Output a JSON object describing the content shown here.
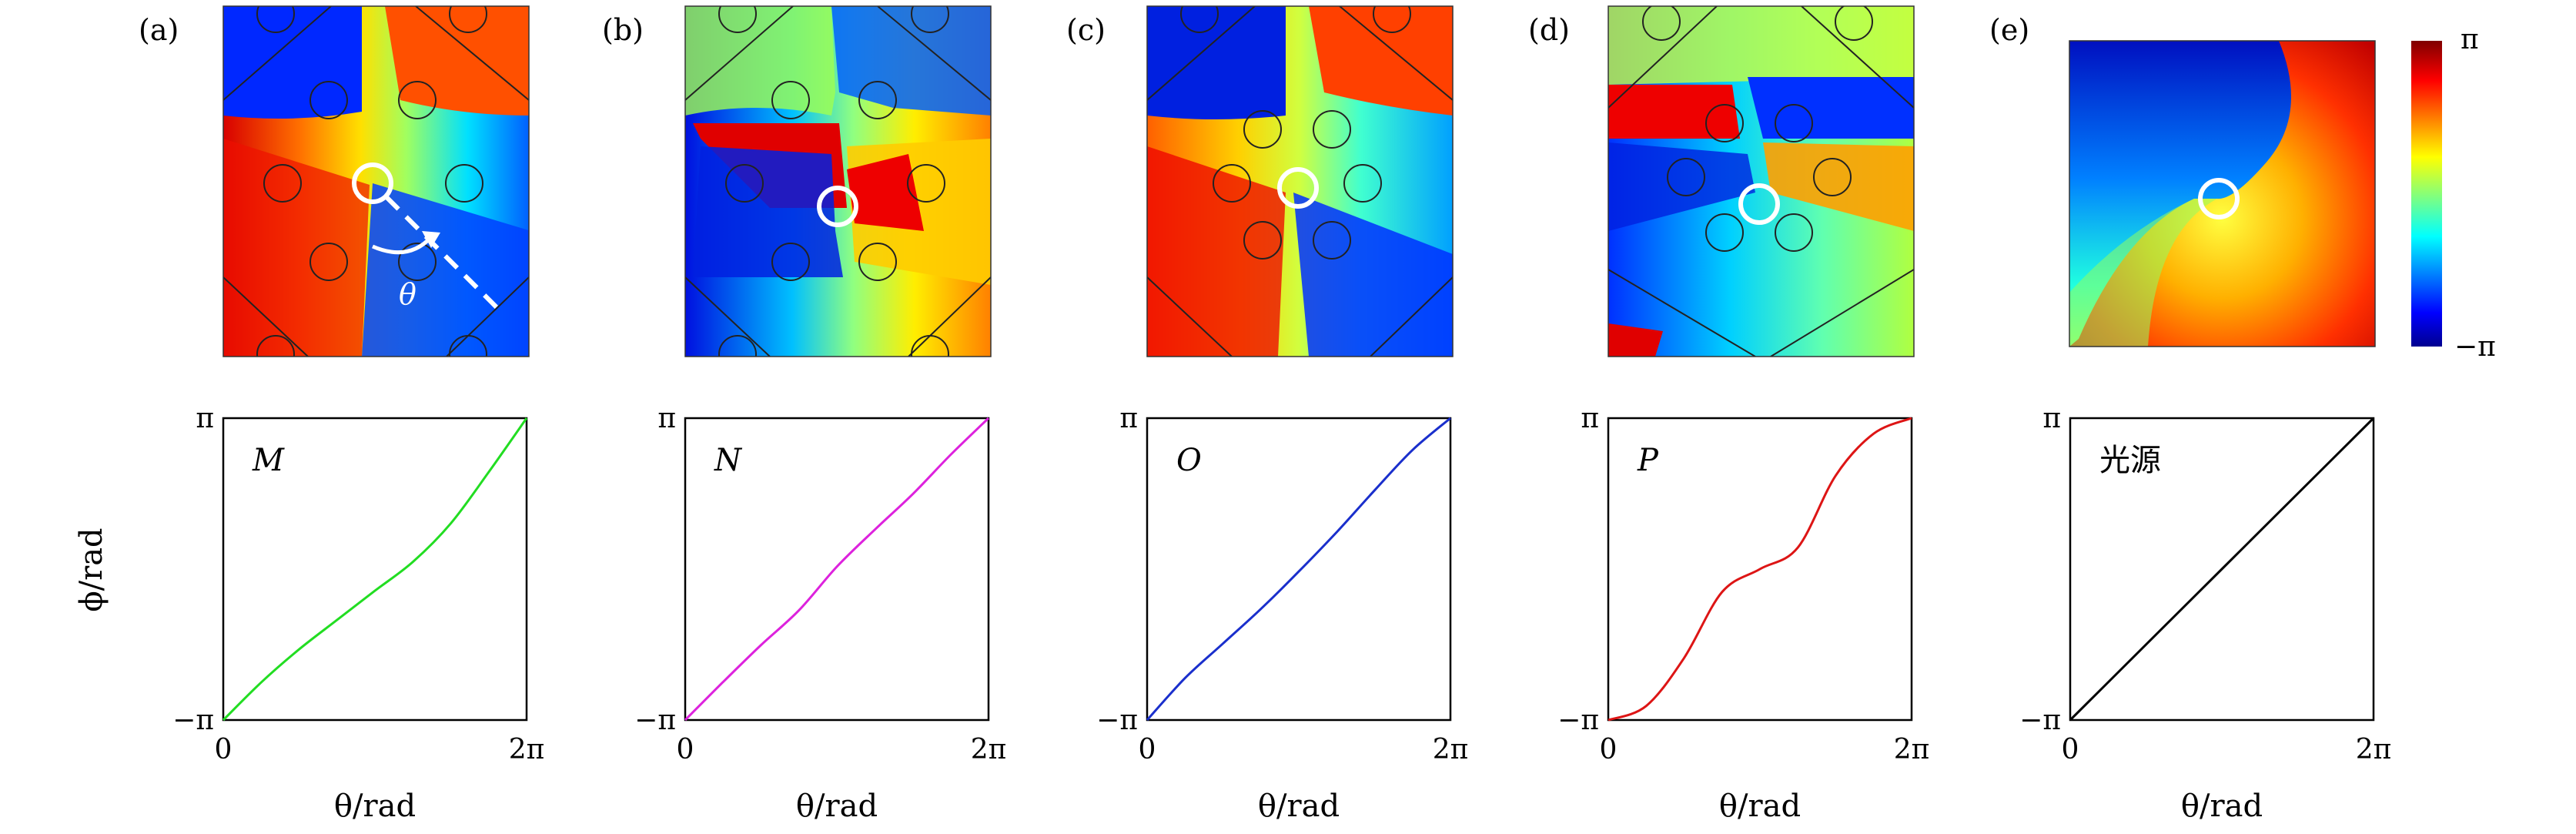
{
  "panel_labels": [
    "(a)",
    "(b)",
    "(c)",
    "(d)",
    "(e)"
  ],
  "colorbar": {
    "max_label": "π",
    "min_label": "−π",
    "colormap": "jet",
    "colors": [
      "#00008f",
      "#0000ff",
      "#00ffff",
      "#ffff00",
      "#ff0000",
      "#800000"
    ]
  },
  "angle_label": "θ",
  "chart_data": [
    {
      "type": "line",
      "panel": "(a)",
      "series": [
        {
          "name": "M",
          "color": "#22dd22",
          "x": [
            0,
            0.785,
            1.571,
            2.356,
            3.142,
            3.927,
            4.712,
            5.498,
            6.283
          ],
          "y": [
            -3.142,
            -2.36,
            -1.67,
            -1.06,
            -0.45,
            0.15,
            0.95,
            2.02,
            3.142
          ]
        }
      ],
      "xlabel": "θ/rad",
      "ylabel": "ϕ/rad",
      "xticks": [
        "0",
        "2π"
      ],
      "yticks": [
        "−π",
        "π"
      ],
      "xlim": [
        0,
        6.283
      ],
      "ylim": [
        -3.142,
        3.142
      ]
    },
    {
      "type": "line",
      "panel": "(b)",
      "series": [
        {
          "name": "N",
          "color": "#dd22dd",
          "x": [
            0,
            0.785,
            1.571,
            2.356,
            3.142,
            3.927,
            4.712,
            5.498,
            6.283
          ],
          "y": [
            -3.142,
            -2.35,
            -1.58,
            -0.86,
            0.05,
            0.82,
            1.56,
            2.38,
            3.142
          ]
        }
      ],
      "xlabel": "θ/rad",
      "ylabel": "",
      "xticks": [
        "0",
        "2π"
      ],
      "yticks": [
        "−π",
        "π"
      ],
      "xlim": [
        0,
        6.283
      ],
      "ylim": [
        -3.142,
        3.142
      ]
    },
    {
      "type": "line",
      "panel": "(c)",
      "series": [
        {
          "name": "O",
          "color": "#1a2fcc",
          "x": [
            0,
            0.785,
            1.571,
            2.356,
            3.142,
            3.927,
            4.712,
            5.498,
            6.283
          ],
          "y": [
            -3.142,
            -2.27,
            -1.55,
            -0.83,
            -0.05,
            0.77,
            1.64,
            2.48,
            3.142
          ]
        }
      ],
      "xlabel": "θ/rad",
      "ylabel": "",
      "xticks": [
        "0",
        "2π"
      ],
      "yticks": [
        "−π",
        "π"
      ],
      "xlim": [
        0,
        6.283
      ],
      "ylim": [
        -3.142,
        3.142
      ]
    },
    {
      "type": "line",
      "panel": "(d)",
      "series": [
        {
          "name": "P",
          "color": "#dd1515",
          "x": [
            0,
            0.785,
            1.571,
            2.356,
            3.142,
            3.927,
            4.712,
            5.498,
            6.283
          ],
          "y": [
            -3.142,
            -2.85,
            -1.85,
            -0.48,
            0.0,
            0.45,
            1.95,
            2.82,
            3.142
          ]
        }
      ],
      "xlabel": "θ/rad",
      "ylabel": "",
      "xticks": [
        "0",
        "2π"
      ],
      "yticks": [
        "−π",
        "π"
      ],
      "xlim": [
        0,
        6.283
      ],
      "ylim": [
        -3.142,
        3.142
      ]
    },
    {
      "type": "line",
      "panel": "(e)",
      "series": [
        {
          "name": "光源",
          "color": "#000000",
          "x": [
            0,
            6.283
          ],
          "y": [
            -3.142,
            3.142
          ]
        }
      ],
      "xlabel": "θ/rad",
      "ylabel": "",
      "xticks": [
        "0",
        "2π"
      ],
      "yticks": [
        "−π",
        "π"
      ],
      "xlim": [
        0,
        6.283
      ],
      "ylim": [
        -3.142,
        3.142
      ]
    }
  ]
}
